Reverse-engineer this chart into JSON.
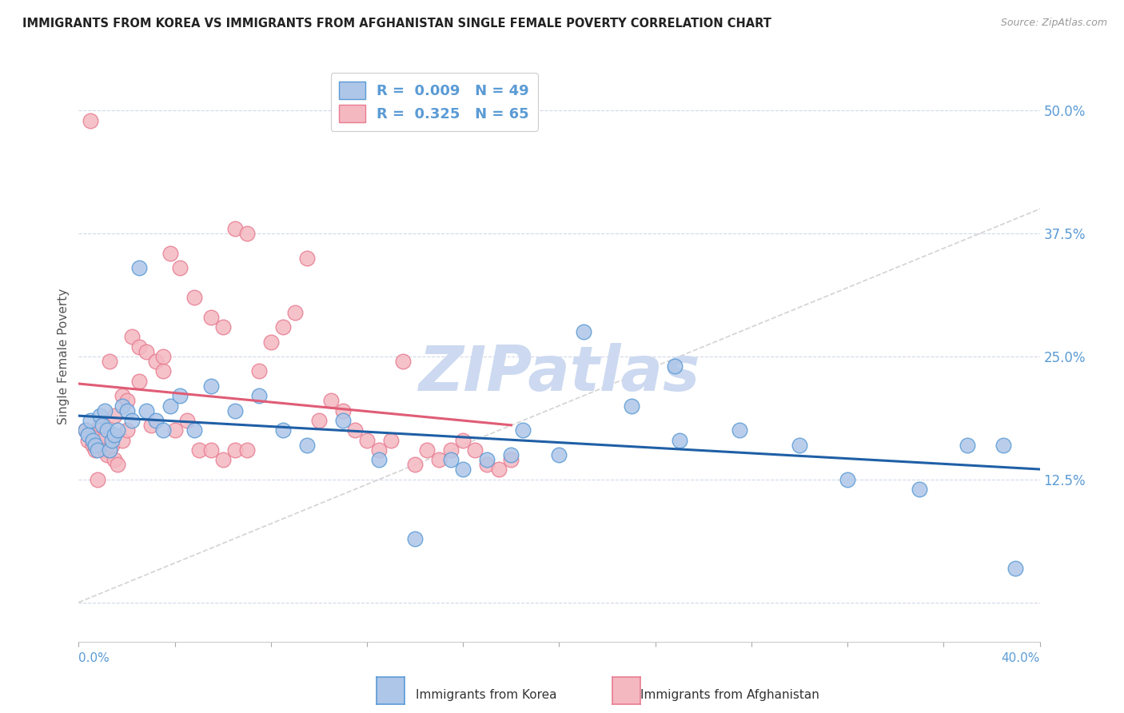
{
  "title": "IMMIGRANTS FROM KOREA VS IMMIGRANTS FROM AFGHANISTAN SINGLE FEMALE POVERTY CORRELATION CHART",
  "source": "Source: ZipAtlas.com",
  "ylabel": "Single Female Poverty",
  "ytick_positions": [
    0.0,
    0.125,
    0.25,
    0.375,
    0.5
  ],
  "ytick_labels": [
    "",
    "12.5%",
    "25.0%",
    "37.5%",
    "50.0%"
  ],
  "xlim": [
    0.0,
    0.4
  ],
  "ylim": [
    -0.04,
    0.54
  ],
  "legend_korea_R": "0.009",
  "legend_korea_N": "49",
  "legend_afghanistan_R": "0.325",
  "legend_afghanistan_N": "65",
  "korea_color": "#aec6e8",
  "afghanistan_color": "#f4b8c1",
  "korea_edge_color": "#5b9bd5",
  "afghanistan_edge_color": "#e87d91",
  "trend_korea_color": "#1f5fa6",
  "trend_afghanistan_color": "#e05c75",
  "diagonal_color": "#c8c8c8",
  "watermark_color": "#ccd9f0",
  "title_color": "#222222",
  "axis_label_color": "#5b9bd5",
  "background_color": "#ffffff",
  "grid_color": "#d0d8e8",
  "korea_x": [
    0.003,
    0.004,
    0.005,
    0.006,
    0.007,
    0.008,
    0.009,
    0.01,
    0.011,
    0.012,
    0.013,
    0.014,
    0.015,
    0.016,
    0.018,
    0.02,
    0.022,
    0.025,
    0.028,
    0.032,
    0.035,
    0.038,
    0.042,
    0.048,
    0.055,
    0.065,
    0.075,
    0.085,
    0.095,
    0.11,
    0.125,
    0.14,
    0.155,
    0.17,
    0.185,
    0.2,
    0.21,
    0.23,
    0.25,
    0.275,
    0.3,
    0.32,
    0.35,
    0.37,
    0.385,
    0.39,
    0.248,
    0.18,
    0.16
  ],
  "korea_y": [
    0.175,
    0.17,
    0.185,
    0.165,
    0.16,
    0.155,
    0.19,
    0.18,
    0.195,
    0.175,
    0.155,
    0.165,
    0.17,
    0.175,
    0.2,
    0.195,
    0.185,
    0.34,
    0.195,
    0.185,
    0.175,
    0.2,
    0.21,
    0.175,
    0.22,
    0.195,
    0.21,
    0.175,
    0.16,
    0.185,
    0.145,
    0.065,
    0.145,
    0.145,
    0.175,
    0.15,
    0.275,
    0.2,
    0.165,
    0.175,
    0.16,
    0.125,
    0.115,
    0.16,
    0.16,
    0.035,
    0.24,
    0.15,
    0.135
  ],
  "afghanistan_x": [
    0.003,
    0.004,
    0.005,
    0.006,
    0.007,
    0.008,
    0.009,
    0.01,
    0.011,
    0.012,
    0.013,
    0.014,
    0.015,
    0.016,
    0.018,
    0.02,
    0.022,
    0.025,
    0.028,
    0.032,
    0.035,
    0.038,
    0.042,
    0.048,
    0.055,
    0.06,
    0.065,
    0.07,
    0.075,
    0.08,
    0.085,
    0.09,
    0.095,
    0.1,
    0.105,
    0.11,
    0.115,
    0.12,
    0.125,
    0.13,
    0.135,
    0.14,
    0.145,
    0.15,
    0.155,
    0.16,
    0.165,
    0.17,
    0.175,
    0.18,
    0.013,
    0.015,
    0.018,
    0.02,
    0.025,
    0.03,
    0.035,
    0.04,
    0.045,
    0.05,
    0.055,
    0.06,
    0.065,
    0.07,
    0.008
  ],
  "afghanistan_y": [
    0.175,
    0.165,
    0.49,
    0.16,
    0.155,
    0.17,
    0.18,
    0.165,
    0.155,
    0.15,
    0.155,
    0.16,
    0.145,
    0.14,
    0.21,
    0.205,
    0.27,
    0.26,
    0.255,
    0.245,
    0.235,
    0.355,
    0.34,
    0.31,
    0.29,
    0.28,
    0.38,
    0.375,
    0.235,
    0.265,
    0.28,
    0.295,
    0.35,
    0.185,
    0.205,
    0.195,
    0.175,
    0.165,
    0.155,
    0.165,
    0.245,
    0.14,
    0.155,
    0.145,
    0.155,
    0.165,
    0.155,
    0.14,
    0.135,
    0.145,
    0.245,
    0.19,
    0.165,
    0.175,
    0.225,
    0.18,
    0.25,
    0.175,
    0.185,
    0.155,
    0.155,
    0.145,
    0.155,
    0.155,
    0.125
  ]
}
